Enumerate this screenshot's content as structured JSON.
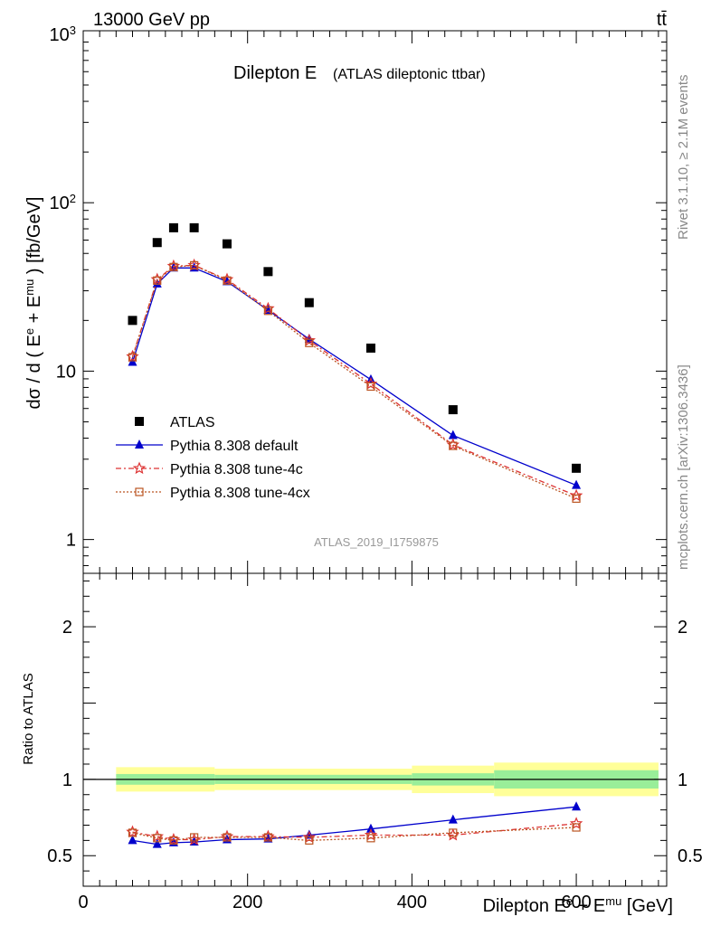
{
  "header": {
    "energy_label": "13000 GeV pp",
    "process_label": "tt̄",
    "rivet_label": "Rivet 3.1.10, ≥ 2.1M events",
    "mcplots_label": "mcplots.cern.ch [arXiv:1306.3436]"
  },
  "chart_data": [
    {
      "type": "scatter",
      "title": "Dilepton E",
      "subtitle": "(ATLAS dileptonic ttbar)",
      "reference_label": "ATLAS_2019_I1759875",
      "ylabel": {
        "main": "dσ / d ( E",
        "sup1": "e",
        "mid": " + E",
        "sup2": "mu",
        "end": " ) [fb/GeV]"
      },
      "yscale": "log",
      "xlim": [
        0,
        710
      ],
      "ylim": [
        0.63,
        1050
      ],
      "y_ticks": [
        {
          "value": 1,
          "label": "1"
        },
        {
          "value": 10,
          "label": "10"
        },
        {
          "value": 100,
          "label": "10",
          "sup": "2"
        },
        {
          "value": 1000,
          "label": "10",
          "sup": "3"
        }
      ],
      "legend_position": "lower-left",
      "x": [
        60,
        90,
        110,
        135,
        175,
        225,
        275,
        350,
        450,
        600
      ],
      "series": [
        {
          "name": "ATLAS",
          "style": "data",
          "color": "#000000",
          "values": [
            20,
            58,
            71,
            71,
            57,
            39,
            25.5,
            13.7,
            5.9,
            2.65
          ]
        },
        {
          "name": "Pythia 8.308 default",
          "style": "line-triangle",
          "color": "#0000cc",
          "values": [
            11.3,
            33,
            41,
            41,
            34,
            23,
            15.5,
            8.9,
            4.15,
            2.1
          ]
        },
        {
          "name": "Pythia 8.308 tune-4c",
          "style": "dashdot-star",
          "color": "#dd3333",
          "values": [
            12.2,
            35,
            42,
            42.5,
            35,
            23.5,
            15.2,
            8.4,
            3.65,
            1.82
          ]
        },
        {
          "name": "Pythia 8.308 tune-4cx",
          "style": "dotted-square",
          "color": "#bb5522",
          "values": [
            12.1,
            34.5,
            41.5,
            42.5,
            34.5,
            22.8,
            14.7,
            8.1,
            3.6,
            1.75
          ]
        }
      ]
    },
    {
      "type": "line",
      "ylabel": "Ratio to ATLAS",
      "xlabel": {
        "main": "Dilepton E",
        "sup1": "e",
        "mid": " + E",
        "sup2": "mu",
        "end": " [GeV]"
      },
      "xlim": [
        0,
        710
      ],
      "ylim": [
        0.3,
        2.35
      ],
      "x_ticks": [
        0,
        200,
        400,
        600
      ],
      "y_ticks": [
        0.5,
        1,
        2
      ],
      "reference_line": 1,
      "uncertainty_bands": [
        {
          "x0": 40,
          "x1": 160,
          "inner": 0.035,
          "outer": 0.08
        },
        {
          "x0": 160,
          "x1": 400,
          "inner": 0.03,
          "outer": 0.07
        },
        {
          "x0": 400,
          "x1": 500,
          "inner": 0.04,
          "outer": 0.09
        },
        {
          "x0": 500,
          "x1": 700,
          "inner": 0.06,
          "outer": 0.11
        }
      ],
      "x": [
        60,
        90,
        110,
        135,
        175,
        225,
        275,
        350,
        450,
        600
      ],
      "series": [
        {
          "name": "Pythia 8.308 default",
          "style": "line-triangle",
          "color": "#0000cc",
          "values": [
            0.6,
            0.575,
            0.585,
            0.59,
            0.605,
            0.61,
            0.635,
            0.675,
            0.735,
            0.82
          ]
        },
        {
          "name": "Pythia 8.308 tune-4c",
          "style": "dashdot-star",
          "color": "#dd3333",
          "values": [
            0.655,
            0.625,
            0.605,
            0.605,
            0.625,
            0.625,
            0.62,
            0.635,
            0.635,
            0.71
          ]
        },
        {
          "name": "Pythia 8.308 tune-4cx",
          "style": "dotted-square",
          "color": "#bb5522",
          "values": [
            0.65,
            0.615,
            0.6,
            0.62,
            0.62,
            0.62,
            0.6,
            0.615,
            0.65,
            0.685
          ]
        }
      ]
    }
  ]
}
